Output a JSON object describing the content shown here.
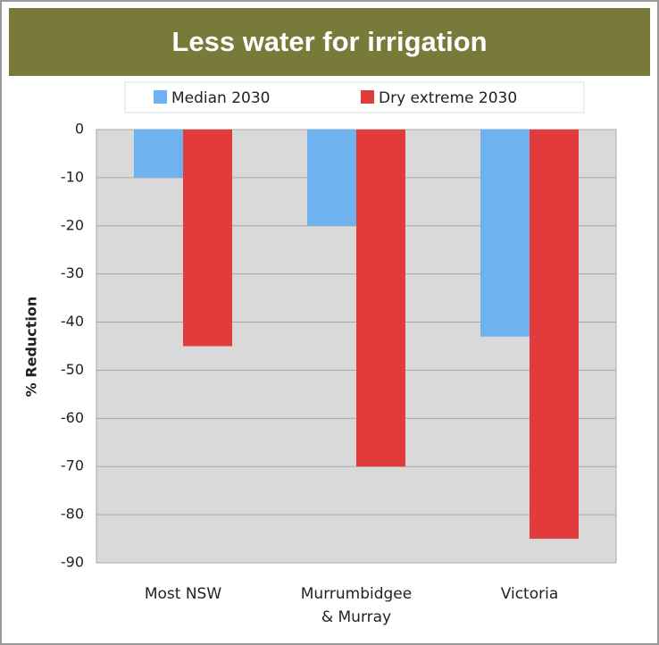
{
  "chart_data": {
    "type": "bar",
    "title": "Less water for irrigation",
    "y_label": "% Reduction",
    "categories": [
      "Most NSW",
      "Murrumbidgee & Murray",
      "Victoria"
    ],
    "series": [
      {
        "name": "Median 2030",
        "color": "#6fb2f0",
        "values": [
          -10,
          -20,
          -43
        ]
      },
      {
        "name": "Dry extreme 2030",
        "color": "#e23b3b",
        "values": [
          -45,
          -70,
          -85
        ]
      }
    ],
    "ylim": [
      -90,
      0
    ],
    "yticks": [
      0,
      -10,
      -20,
      -30,
      -40,
      -50,
      -60,
      -70,
      -80,
      -90
    ],
    "grid": true
  }
}
